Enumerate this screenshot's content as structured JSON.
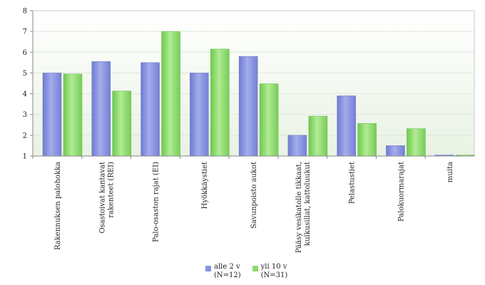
{
  "chart_data": {
    "type": "bar",
    "title": "",
    "xlabel": "",
    "ylabel": "",
    "ylim": [
      1,
      8
    ],
    "yticks": [
      1,
      2,
      3,
      4,
      5,
      6,
      7,
      8
    ],
    "grid": true,
    "legend_position": "bottom",
    "categories": [
      [
        "Rakennuksen palohokka"
      ],
      [
        "Osastoivat kantavat",
        "rakenteet (REI)"
      ],
      [
        "Palo-osaston rajat (EI)"
      ],
      [
        "Hyökkäystiet"
      ],
      [
        "Savunpoisto aukot"
      ],
      [
        "Pääsy vesikatolle tikkaat,",
        "kulkusillat, kattoluukut"
      ],
      [
        "Pelastustiet"
      ],
      [
        "Palokuormarajat"
      ],
      [
        "muita"
      ]
    ],
    "series": [
      {
        "name": [
          "alle 2 v",
          "(N=12)"
        ],
        "color": "#8a94de",
        "values": [
          5.0,
          5.55,
          5.5,
          5.0,
          5.8,
          2.0,
          3.9,
          1.5,
          1.05
        ]
      },
      {
        "name": [
          "yli 10 v",
          "(N=31)"
        ],
        "color": "#8dd96f",
        "values": [
          4.95,
          4.13,
          7.0,
          6.15,
          4.48,
          2.92,
          2.57,
          2.32,
          1.05
        ]
      }
    ]
  }
}
